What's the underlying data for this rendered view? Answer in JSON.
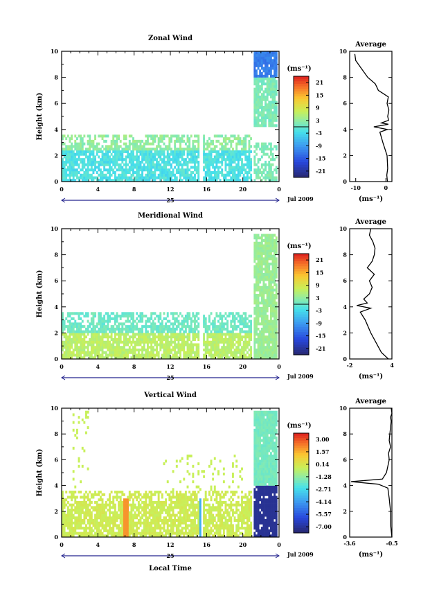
{
  "xlabel": "Local Time",
  "ylabel": "Height (km)",
  "date_label": "Jul 2009",
  "day_label": "25",
  "colorbar_unit": "(ms⁻¹)",
  "avg_title": "Average",
  "avg_unit": "(ms⁻¹)",
  "colors": {
    "low": "#2a2a80",
    "mid": "#49d6e8",
    "midhigh": "#c8f05a",
    "high": "#e02020"
  },
  "chart_data": [
    {
      "type": "heatmap",
      "title": "Zonal Wind",
      "x_ticks": [
        "0",
        "4",
        "8",
        "12",
        "16",
        "20",
        "0"
      ],
      "y_ticks": [
        "0",
        "2",
        "4",
        "6",
        "8",
        "10"
      ],
      "xlim": [
        0,
        24
      ],
      "ylim": [
        0,
        10
      ],
      "colorbar_ticks": [
        "21",
        "15",
        "9",
        "3",
        "-3",
        "-9",
        "-15",
        "-21"
      ],
      "colorbar_range": [
        -24,
        24
      ],
      "average": {
        "x_ticks": [
          "-10",
          "0"
        ],
        "xlim": [
          -12,
          2
        ],
        "y_ticks": [
          "0",
          "2",
          "4",
          "6",
          "8",
          "10"
        ],
        "profile_x": [
          0.5,
          0.3,
          0.6,
          0.4,
          -1.0,
          -2.0,
          0.5,
          -4.0,
          0.8,
          -1.5,
          0.9,
          0.6,
          1.0,
          0.4,
          0.8,
          -2.5,
          -3.5,
          -6.0,
          -8.5,
          -10.0,
          -10.3
        ],
        "profile_y": [
          0.0,
          0.5,
          1.0,
          2.0,
          3.0,
          3.8,
          4.0,
          4.2,
          4.4,
          4.5,
          4.7,
          5.0,
          5.5,
          6.0,
          6.5,
          7.0,
          7.5,
          8.0,
          8.8,
          9.3,
          9.8
        ]
      }
    },
    {
      "type": "heatmap",
      "title": "Meridional Wind",
      "x_ticks": [
        "0",
        "4",
        "8",
        "12",
        "16",
        "20",
        "0"
      ],
      "y_ticks": [
        "0",
        "2",
        "4",
        "6",
        "8",
        "10"
      ],
      "xlim": [
        0,
        24
      ],
      "ylim": [
        0,
        10
      ],
      "colorbar_ticks": [
        "21",
        "15",
        "9",
        "3",
        "-3",
        "-9",
        "-15",
        "-21"
      ],
      "colorbar_range": [
        -24,
        24
      ],
      "average": {
        "x_ticks": [
          "-2",
          "4"
        ],
        "xlim": [
          -2,
          4
        ],
        "y_ticks": [
          "0",
          "2",
          "4",
          "6",
          "8",
          "10"
        ],
        "profile_x": [
          3.5,
          2.5,
          2.0,
          1.0,
          0.2,
          -0.5,
          1.0,
          -1.0,
          0.5,
          0.0,
          0.8,
          1.2,
          0.8,
          1.5,
          0.5,
          1.2,
          1.5,
          1.6,
          1.3,
          0.8,
          1.0
        ],
        "profile_y": [
          0.0,
          0.5,
          1.0,
          2.0,
          3.0,
          3.6,
          3.9,
          4.1,
          4.3,
          4.6,
          5.0,
          5.5,
          6.0,
          6.5,
          7.0,
          7.5,
          8.0,
          8.5,
          9.0,
          9.5,
          10.0
        ]
      }
    },
    {
      "type": "heatmap",
      "title": "Vertical Wind",
      "x_ticks": [
        "0",
        "4",
        "8",
        "12",
        "16",
        "20",
        "0"
      ],
      "y_ticks": [
        "0",
        "2",
        "4",
        "6",
        "8",
        "10"
      ],
      "xlim": [
        0,
        24
      ],
      "ylim": [
        0,
        10
      ],
      "colorbar_ticks": [
        "3.00",
        "1.57",
        "0.14",
        "-1.28",
        "-2.71",
        "-4.14",
        "-5.57",
        "-7.00"
      ],
      "colorbar_range": [
        -7.7,
        3.7
      ],
      "average": {
        "x_ticks": [
          "-3.6",
          "-0.5"
        ],
        "xlim": [
          -3.6,
          -0.5
        ],
        "y_ticks": [
          "0",
          "2",
          "4",
          "6",
          "8",
          "10"
        ],
        "profile_x": [
          -0.5,
          -0.6,
          -0.6,
          -0.7,
          -0.8,
          -1.5,
          -3.5,
          -1.2,
          -0.9,
          -0.8,
          -0.7,
          -0.75,
          -0.6,
          -0.7,
          -0.65,
          -0.6,
          -0.55,
          -0.6,
          -0.5,
          -0.55
        ],
        "profile_y": [
          0.0,
          1.0,
          2.0,
          3.0,
          3.8,
          4.1,
          4.3,
          4.5,
          5.0,
          5.5,
          6.0,
          6.5,
          7.0,
          7.5,
          8.0,
          8.5,
          9.0,
          9.3,
          9.6,
          10.0
        ]
      }
    }
  ]
}
